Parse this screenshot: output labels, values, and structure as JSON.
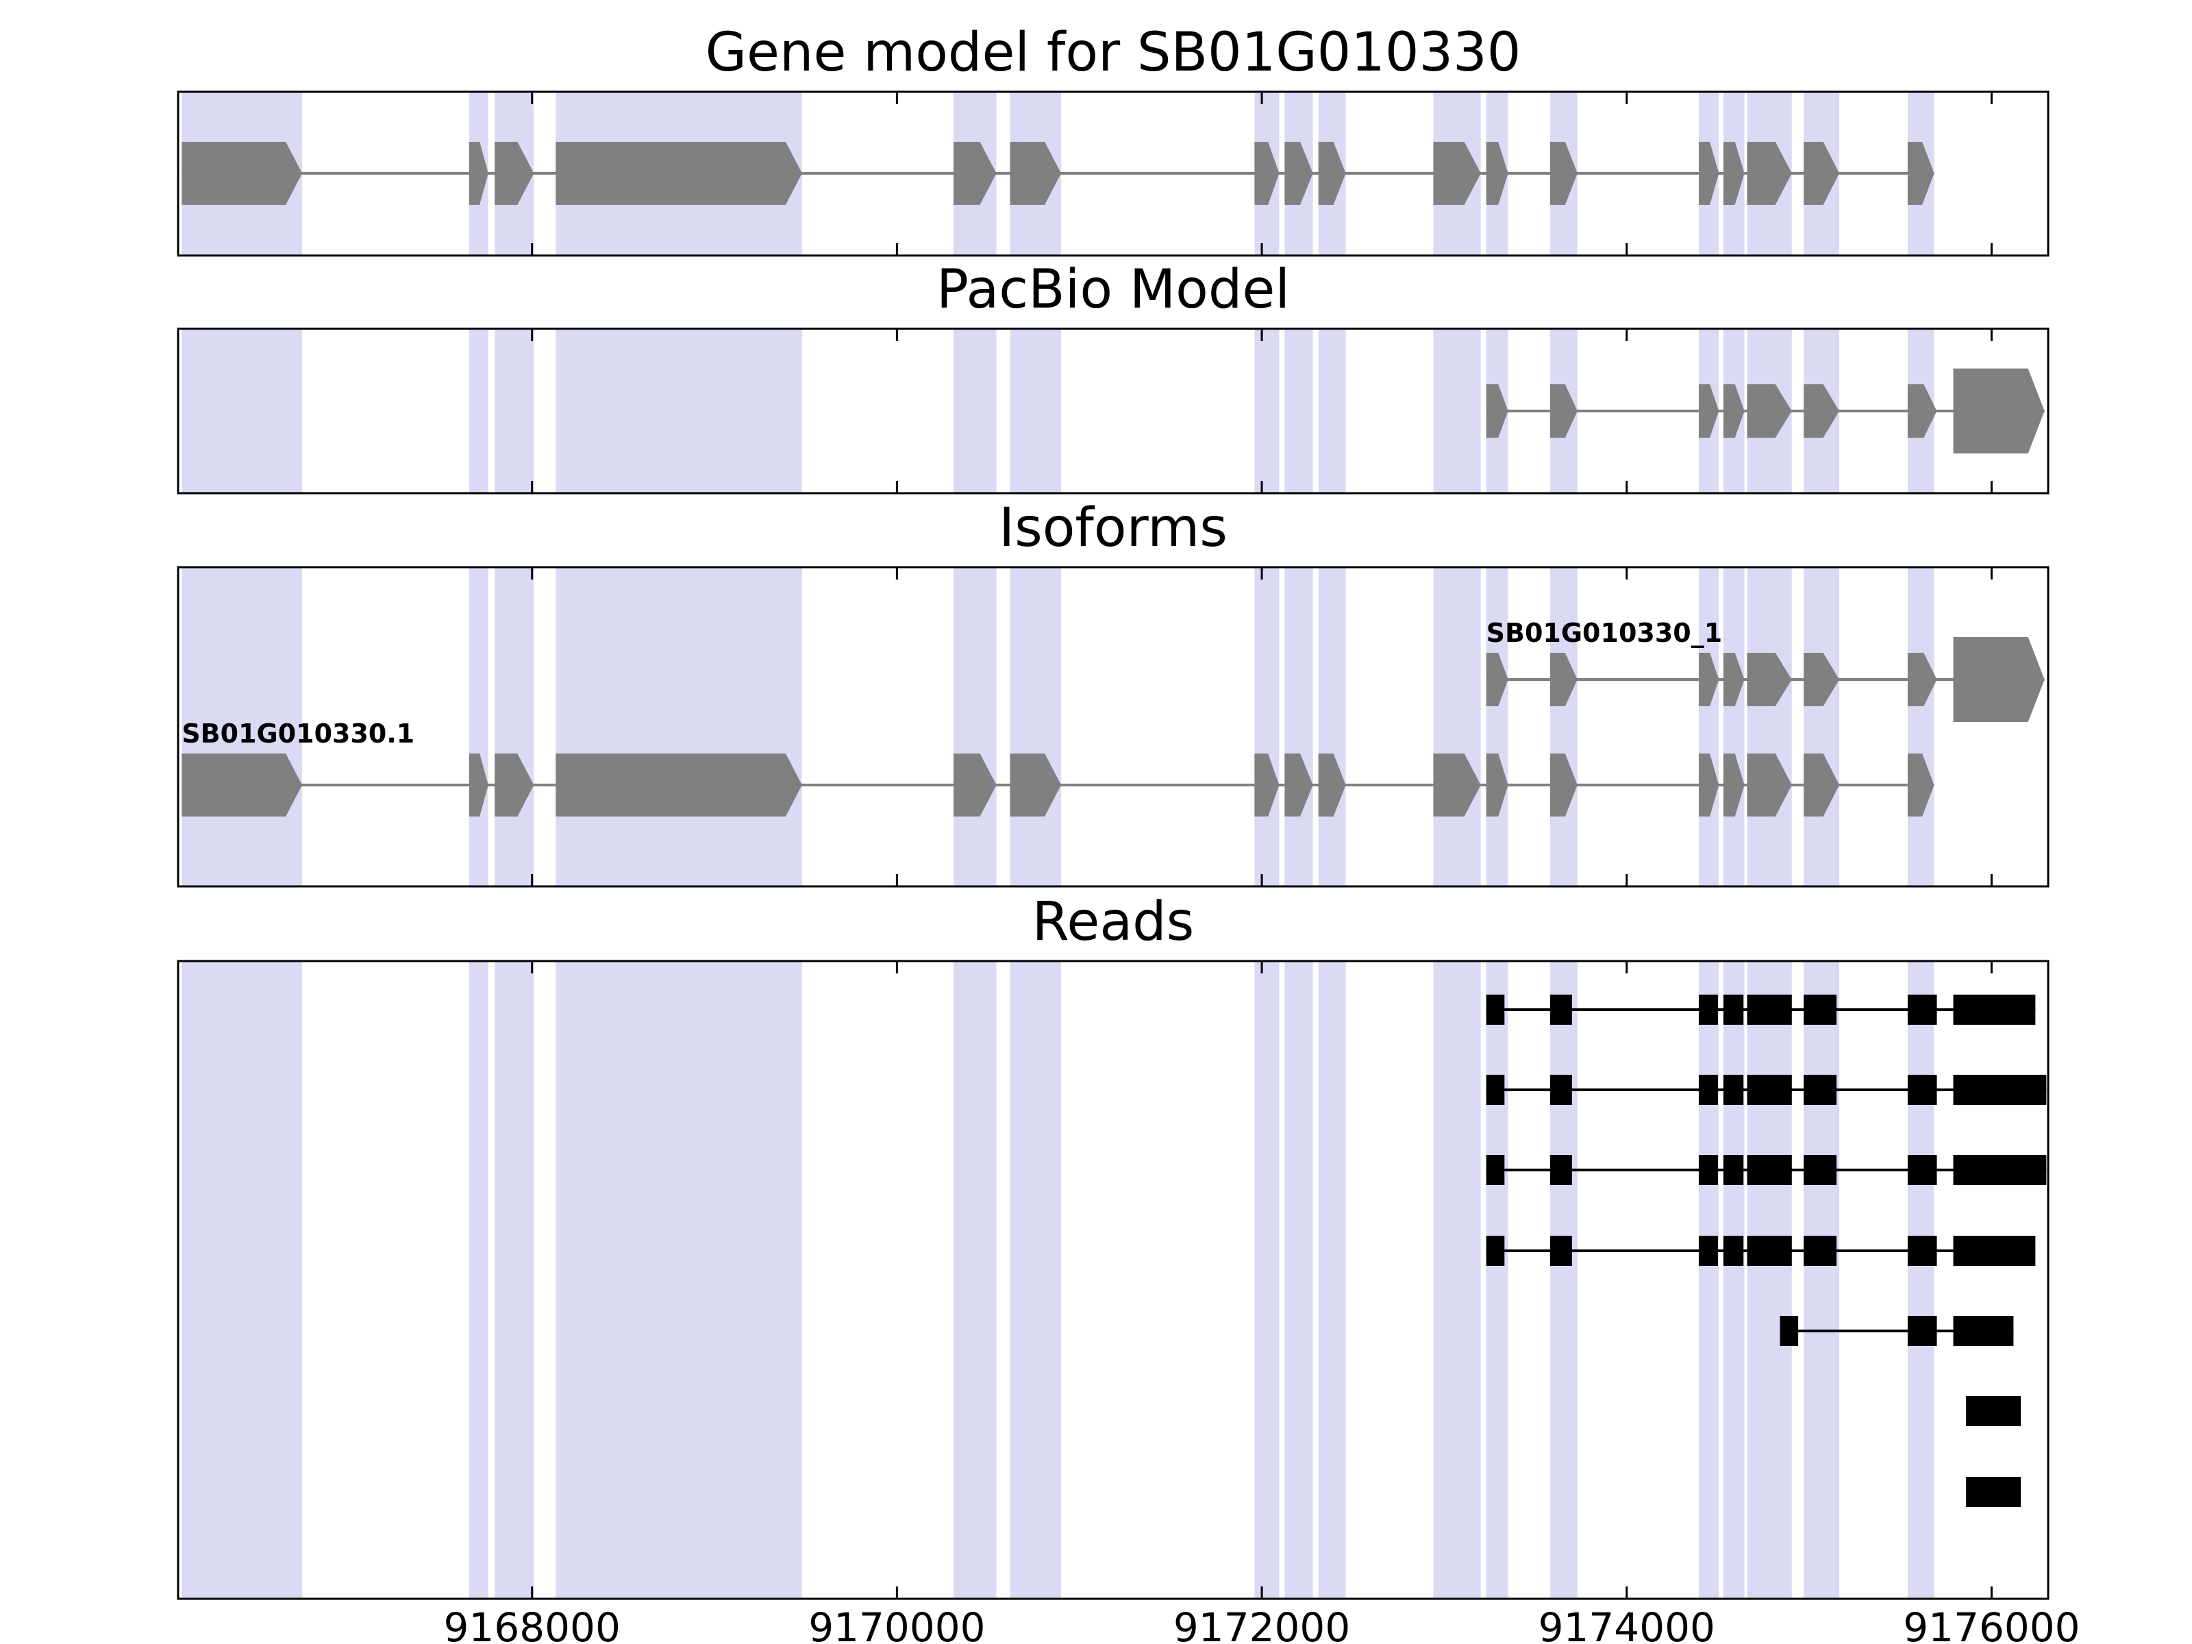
{
  "style": {
    "background": "#ffffff",
    "band_color": "#dadaf5",
    "feature_color": "#808080",
    "read_color": "#000000",
    "border_color": "#000000",
    "text_color": "#000000"
  },
  "chart_data": {
    "type": "gene-model-tracks",
    "x_axis": {
      "min": 9166060,
      "max": 9176310,
      "ticks": [
        9168000,
        9170000,
        9172000,
        9174000,
        9176000
      ],
      "tick_labels": [
        "9168000",
        "9170000",
        "9172000",
        "9174000",
        "9176000"
      ]
    },
    "highlight_bands": [
      [
        9166080,
        9166740
      ],
      [
        9167655,
        9167760
      ],
      [
        9167795,
        9168010
      ],
      [
        9168130,
        9169480
      ],
      [
        9170310,
        9170545
      ],
      [
        9170620,
        9170900
      ],
      [
        9171960,
        9172095
      ],
      [
        9172125,
        9172280
      ],
      [
        9172310,
        9172460
      ],
      [
        9172940,
        9173200
      ],
      [
        9173230,
        9173350
      ],
      [
        9173580,
        9173730
      ],
      [
        9174395,
        9174505
      ],
      [
        9174530,
        9174645
      ],
      [
        9174660,
        9174905
      ],
      [
        9174970,
        9175165
      ],
      [
        9175540,
        9175685
      ]
    ],
    "panels": [
      {
        "title": "Gene model for SB01G010330",
        "tracks": [
          {
            "kind": "gene",
            "label": "",
            "tall_last": false,
            "exons": [
              [
                9166080,
                9166740
              ],
              [
                9167655,
                9167760
              ],
              [
                9167795,
                9168010
              ],
              [
                9168130,
                9169480
              ],
              [
                9170310,
                9170545
              ],
              [
                9170620,
                9170900
              ],
              [
                9171960,
                9172095
              ],
              [
                9172125,
                9172280
              ],
              [
                9172310,
                9172460
              ],
              [
                9172940,
                9173200
              ],
              [
                9173230,
                9173350
              ],
              [
                9173580,
                9173730
              ],
              [
                9174395,
                9174505
              ],
              [
                9174530,
                9174645
              ],
              [
                9174660,
                9174905
              ],
              [
                9174970,
                9175165
              ],
              [
                9175540,
                9175685
              ]
            ]
          }
        ]
      },
      {
        "title": "PacBio Model",
        "tracks": [
          {
            "kind": "gene",
            "label": "",
            "tall_last": true,
            "exons": [
              [
                9173230,
                9173350
              ],
              [
                9173580,
                9173730
              ],
              [
                9174395,
                9174505
              ],
              [
                9174530,
                9174645
              ],
              [
                9174660,
                9174905
              ],
              [
                9174970,
                9175165
              ],
              [
                9175540,
                9175700
              ],
              [
                9175790,
                9176290
              ]
            ]
          }
        ]
      },
      {
        "title": "Isoforms",
        "tracks": [
          {
            "kind": "gene",
            "label": "SB01G010330_1",
            "tall_last": true,
            "exons": [
              [
                9173230,
                9173350
              ],
              [
                9173580,
                9173730
              ],
              [
                9174395,
                9174505
              ],
              [
                9174530,
                9174645
              ],
              [
                9174660,
                9174905
              ],
              [
                9174970,
                9175165
              ],
              [
                9175540,
                9175700
              ],
              [
                9175790,
                9176290
              ]
            ]
          },
          {
            "kind": "gene",
            "label": "SB01G010330.1",
            "tall_last": false,
            "exons": [
              [
                9166080,
                9166740
              ],
              [
                9167655,
                9167760
              ],
              [
                9167795,
                9168010
              ],
              [
                9168130,
                9169480
              ],
              [
                9170310,
                9170545
              ],
              [
                9170620,
                9170900
              ],
              [
                9171960,
                9172095
              ],
              [
                9172125,
                9172280
              ],
              [
                9172310,
                9172460
              ],
              [
                9172940,
                9173200
              ],
              [
                9173230,
                9173350
              ],
              [
                9173580,
                9173730
              ],
              [
                9174395,
                9174505
              ],
              [
                9174530,
                9174645
              ],
              [
                9174660,
                9174905
              ],
              [
                9174970,
                9175165
              ],
              [
                9175540,
                9175685
              ]
            ]
          }
        ]
      },
      {
        "title": "Reads",
        "tracks": [
          {
            "kind": "read",
            "label": "",
            "exons": [
              [
                9173230,
                9173330
              ],
              [
                9173580,
                9173700
              ],
              [
                9174395,
                9174500
              ],
              [
                9174530,
                9174640
              ],
              [
                9174660,
                9174905
              ],
              [
                9174970,
                9175150
              ],
              [
                9175540,
                9175700
              ],
              [
                9175790,
                9176240
              ]
            ]
          },
          {
            "kind": "read",
            "label": "",
            "exons": [
              [
                9173230,
                9173330
              ],
              [
                9173580,
                9173700
              ],
              [
                9174395,
                9174500
              ],
              [
                9174530,
                9174640
              ],
              [
                9174660,
                9174905
              ],
              [
                9174970,
                9175150
              ],
              [
                9175540,
                9175700
              ],
              [
                9175790,
                9176300
              ]
            ]
          },
          {
            "kind": "read",
            "label": "",
            "exons": [
              [
                9173230,
                9173330
              ],
              [
                9173580,
                9173700
              ],
              [
                9174395,
                9174500
              ],
              [
                9174530,
                9174640
              ],
              [
                9174660,
                9174905
              ],
              [
                9174970,
                9175150
              ],
              [
                9175540,
                9175700
              ],
              [
                9175790,
                9176300
              ]
            ]
          },
          {
            "kind": "read",
            "label": "",
            "exons": [
              [
                9173230,
                9173330
              ],
              [
                9173580,
                9173700
              ],
              [
                9174395,
                9174500
              ],
              [
                9174530,
                9174640
              ],
              [
                9174660,
                9174905
              ],
              [
                9174970,
                9175150
              ],
              [
                9175540,
                9175700
              ],
              [
                9175790,
                9176240
              ]
            ]
          },
          {
            "kind": "read",
            "label": "",
            "exons": [
              [
                9174840,
                9174940
              ],
              [
                9175540,
                9175700
              ],
              [
                9175790,
                9176120
              ]
            ]
          },
          {
            "kind": "read",
            "label": "",
            "exons": [
              [
                9175860,
                9176160
              ]
            ]
          },
          {
            "kind": "read",
            "label": "",
            "exons": [
              [
                9175860,
                9176160
              ]
            ]
          }
        ]
      }
    ]
  }
}
